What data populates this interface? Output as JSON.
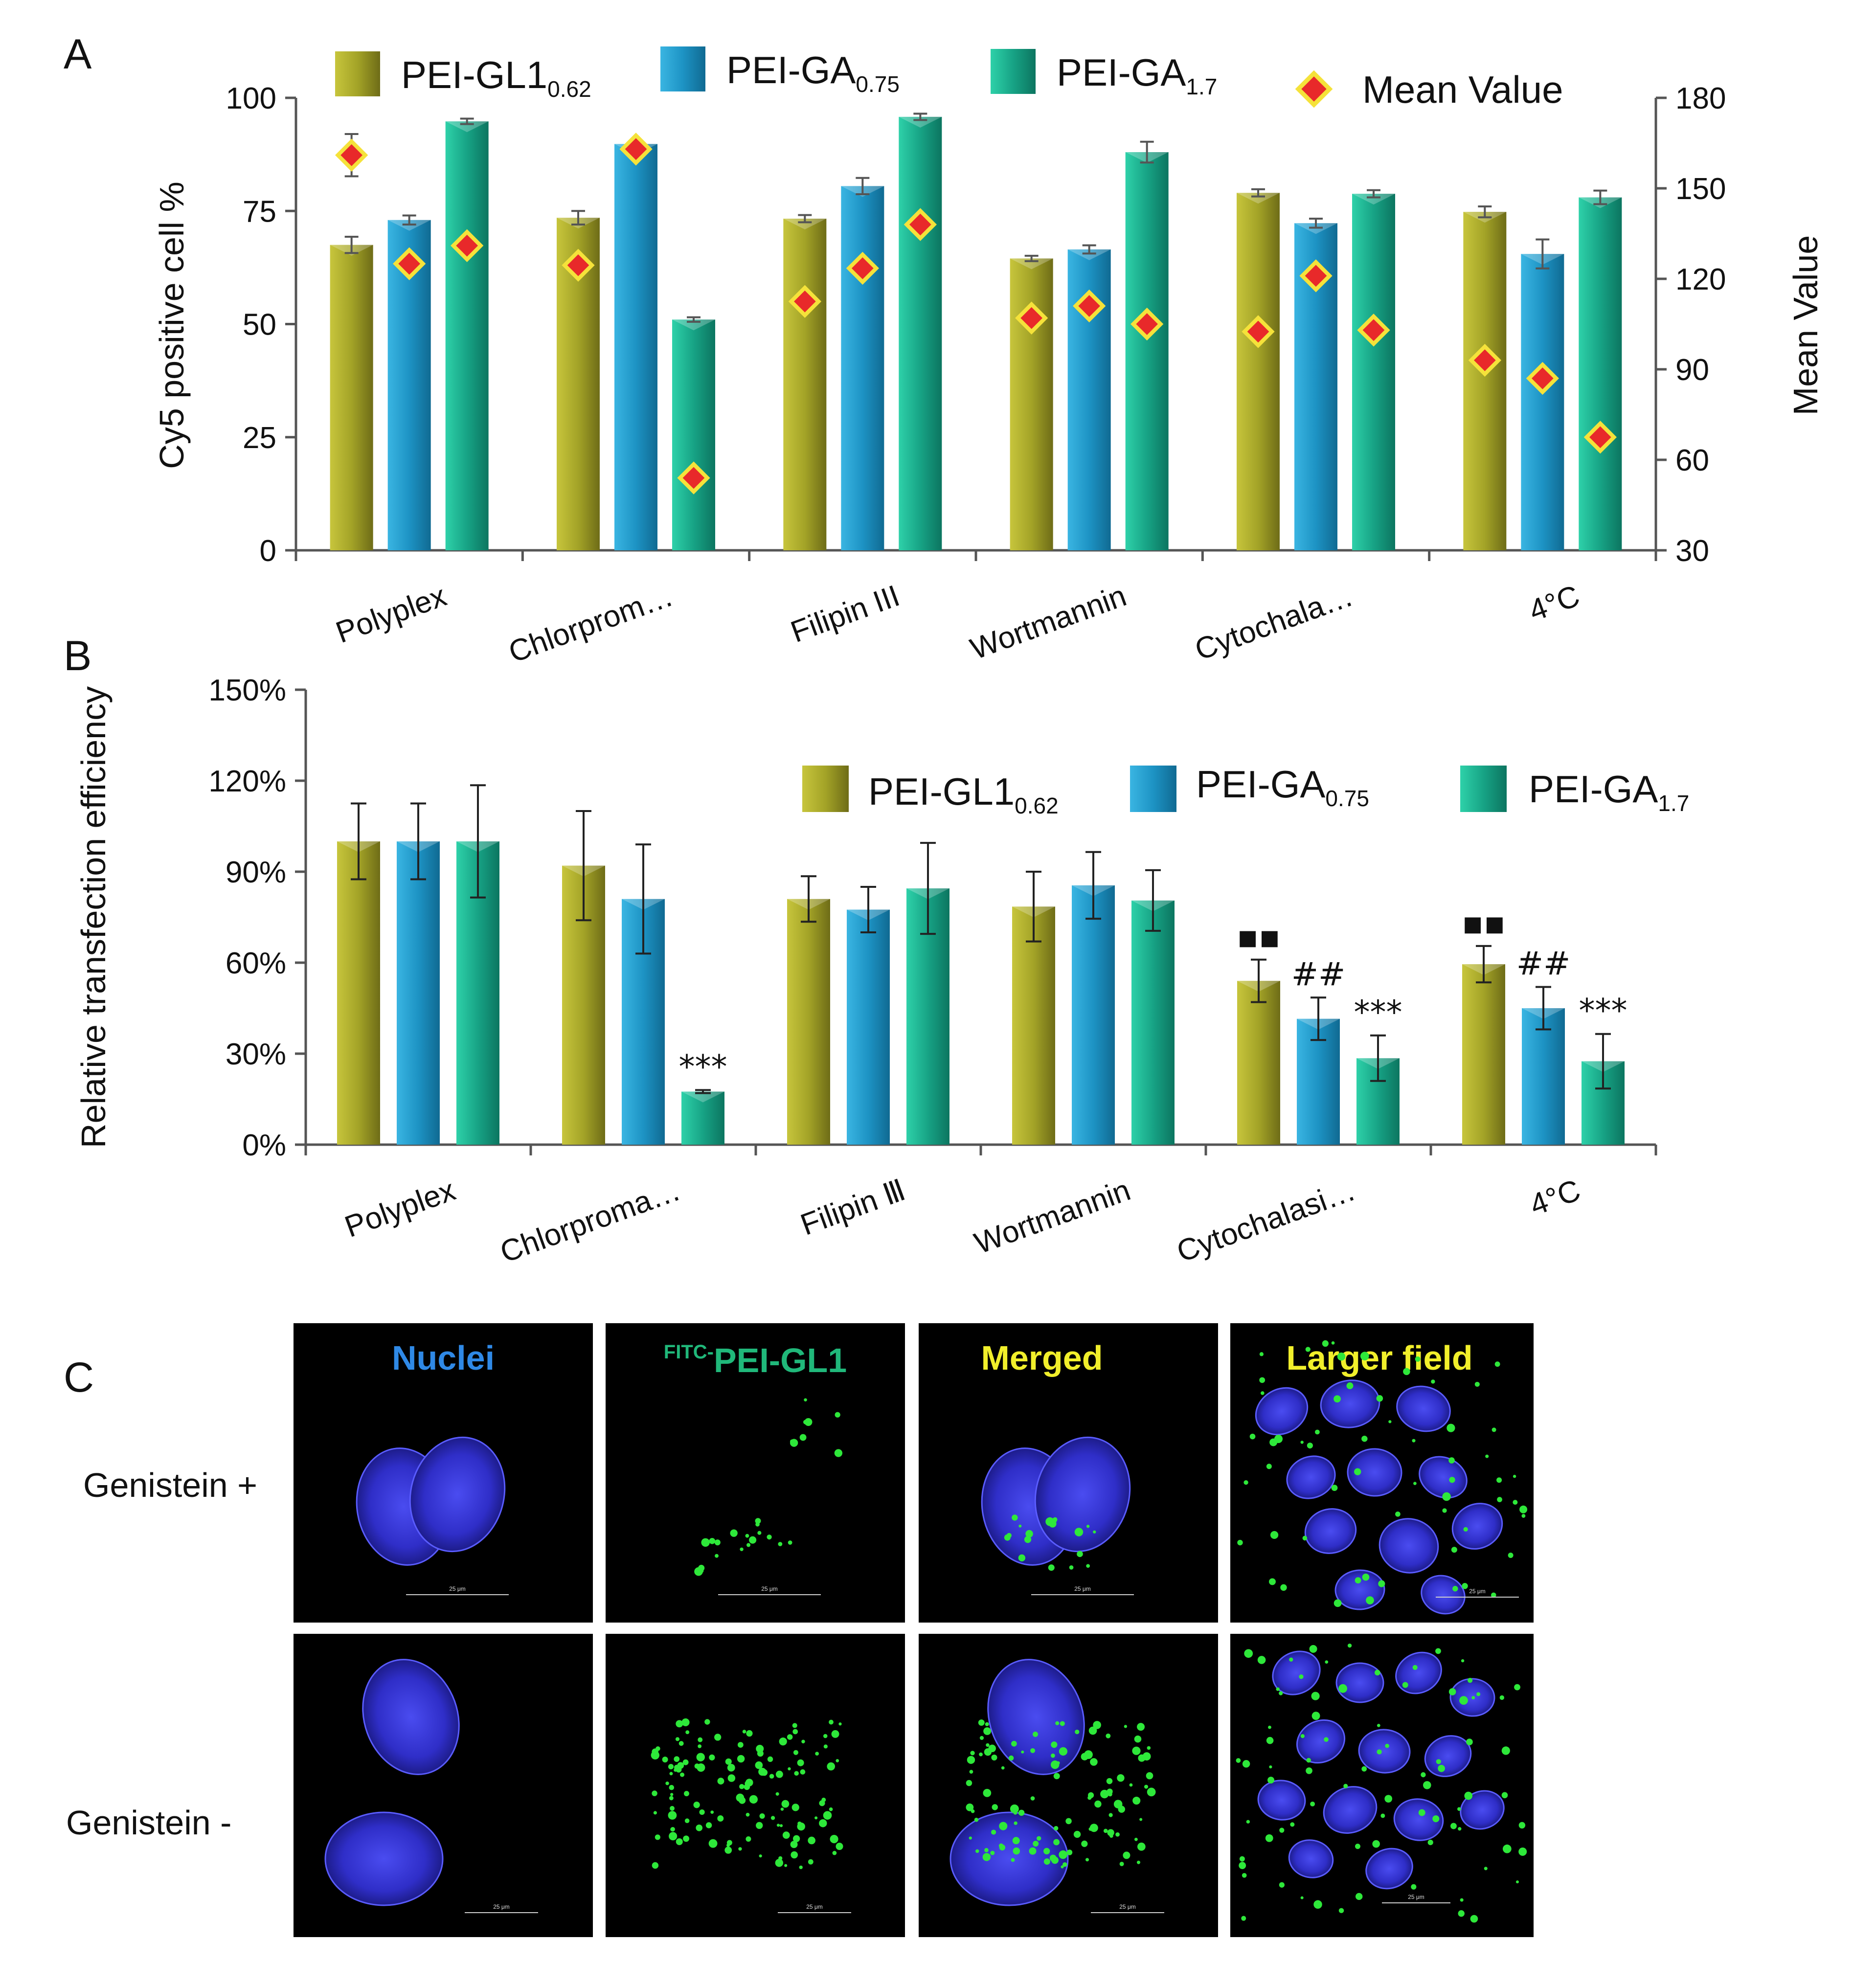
{
  "panel_labels": {
    "a": "A",
    "b": "B",
    "c": "C"
  },
  "colors": {
    "gl1": "#a3a327",
    "ga075": "#1d93c4",
    "ga17": "#17a385",
    "diamond_fill": "#e8292a",
    "diamond_stroke": "#f5e23a",
    "blue_title": "#2f89e6",
    "green_title": "#20b87a",
    "yellow_title": "#f1ef2b"
  },
  "chart_data": [
    {
      "type": "bar",
      "id": "A",
      "title": "",
      "ylabel": "Cy5  positive  cell %",
      "y2label": "Mean  Value",
      "ylim": [
        0,
        100
      ],
      "y2lim": [
        30,
        180
      ],
      "yticks": [
        "0",
        "25",
        "50",
        "75",
        "100"
      ],
      "y2ticks": [
        "30",
        "60",
        "90",
        "120",
        "150",
        "180"
      ],
      "categories": [
        "Polyplex",
        "Chlorprom…",
        "Filipin III",
        "Wortmannin",
        "Cytochala…",
        "4°C"
      ],
      "legend": [
        {
          "name": "PEI-GL1",
          "sub": "0.62"
        },
        {
          "name": "PEI-GA",
          "sub": "0.75"
        },
        {
          "name": "PEI-GA",
          "sub": "1.7"
        },
        {
          "name": "Mean Value",
          "sub": ""
        }
      ],
      "series": [
        {
          "name": "PEI-GL1 0.62",
          "values": [
            67.5,
            73.5,
            73.3,
            64.5,
            79,
            74.8
          ],
          "errors": [
            1.8,
            1.5,
            0.8,
            0.6,
            0.8,
            1.2
          ]
        },
        {
          "name": "PEI-GA 0.75",
          "values": [
            73,
            89.8,
            80.5,
            66.5,
            72.3,
            65.5
          ],
          "errors": [
            1.0,
            0.8,
            1.8,
            0.9,
            1.0,
            3.2
          ]
        },
        {
          "name": "PEI-GA 1.7",
          "values": [
            94.8,
            51,
            95.8,
            88,
            78.8,
            78
          ],
          "errors": [
            0.6,
            0.5,
            0.7,
            2.3,
            0.8,
            1.5
          ]
        }
      ],
      "mean_value": {
        "values": [
          [
            161,
            125,
            131
          ],
          [
            124.5,
            163,
            54
          ],
          [
            112.5,
            123.5,
            138
          ],
          [
            107,
            111,
            105
          ],
          [
            102.5,
            121,
            103
          ],
          [
            93,
            87,
            67.5
          ]
        ],
        "errors": [
          [
            7,
            0,
            0
          ],
          [
            0,
            1.5,
            0
          ],
          [
            0,
            0,
            0
          ],
          [
            0,
            0,
            0
          ],
          [
            0,
            0,
            0
          ],
          [
            0,
            0,
            0
          ]
        ]
      }
    },
    {
      "type": "bar",
      "id": "B",
      "ylabel": "Relative transfection efficiency",
      "ylim": [
        0,
        150
      ],
      "yticks": [
        "0%",
        "30%",
        "60%",
        "90%",
        "120%",
        "150%"
      ],
      "categories": [
        "Polyplex",
        "Chlorproma…",
        "Filipin Ⅲ",
        "Wortmannin",
        "Cytochalasi…",
        "4°C"
      ],
      "legend": [
        {
          "name": "PEI-GL1",
          "sub": "0.62"
        },
        {
          "name": "PEI-GA",
          "sub": "0.75"
        },
        {
          "name": "PEI-GA",
          "sub": "1.7"
        }
      ],
      "series": [
        {
          "name": "PEI-GL1 0.62",
          "values": [
            100,
            92,
            81,
            78.5,
            54,
            59.5
          ],
          "errors": [
            12.5,
            18,
            7.5,
            11.5,
            7,
            6
          ]
        },
        {
          "name": "PEI-GA 0.75",
          "values": [
            100,
            81,
            77.5,
            85.5,
            41.5,
            45
          ],
          "errors": [
            12.5,
            18,
            7.5,
            11,
            7,
            7
          ]
        },
        {
          "name": "PEI-GA 1.7",
          "values": [
            100,
            17.5,
            84.5,
            80.5,
            28.5,
            27.5
          ],
          "errors": [
            18.5,
            0.5,
            15,
            10,
            7.5,
            9
          ]
        }
      ],
      "annotations": [
        {
          "group": 1,
          "series": 2,
          "text": "***"
        },
        {
          "group": 4,
          "series": 0,
          "text": "▪▪"
        },
        {
          "group": 4,
          "series": 1,
          "text": "##"
        },
        {
          "group": 4,
          "series": 2,
          "text": "***"
        },
        {
          "group": 5,
          "series": 0,
          "text": "▪▪"
        },
        {
          "group": 5,
          "series": 1,
          "text": "##"
        },
        {
          "group": 5,
          "series": 2,
          "text": "***"
        }
      ]
    }
  ],
  "micrographs": {
    "column_titles": [
      {
        "pre": "",
        "main": "Nuclei"
      },
      {
        "pre": "FITC-",
        "main": "PEI-GL1"
      },
      {
        "pre": "",
        "main": "Merged"
      },
      {
        "pre": "",
        "main": "Larger field"
      }
    ],
    "rows": [
      "Genistein +",
      "Genistein -"
    ],
    "scale_bar": "25 μm"
  }
}
